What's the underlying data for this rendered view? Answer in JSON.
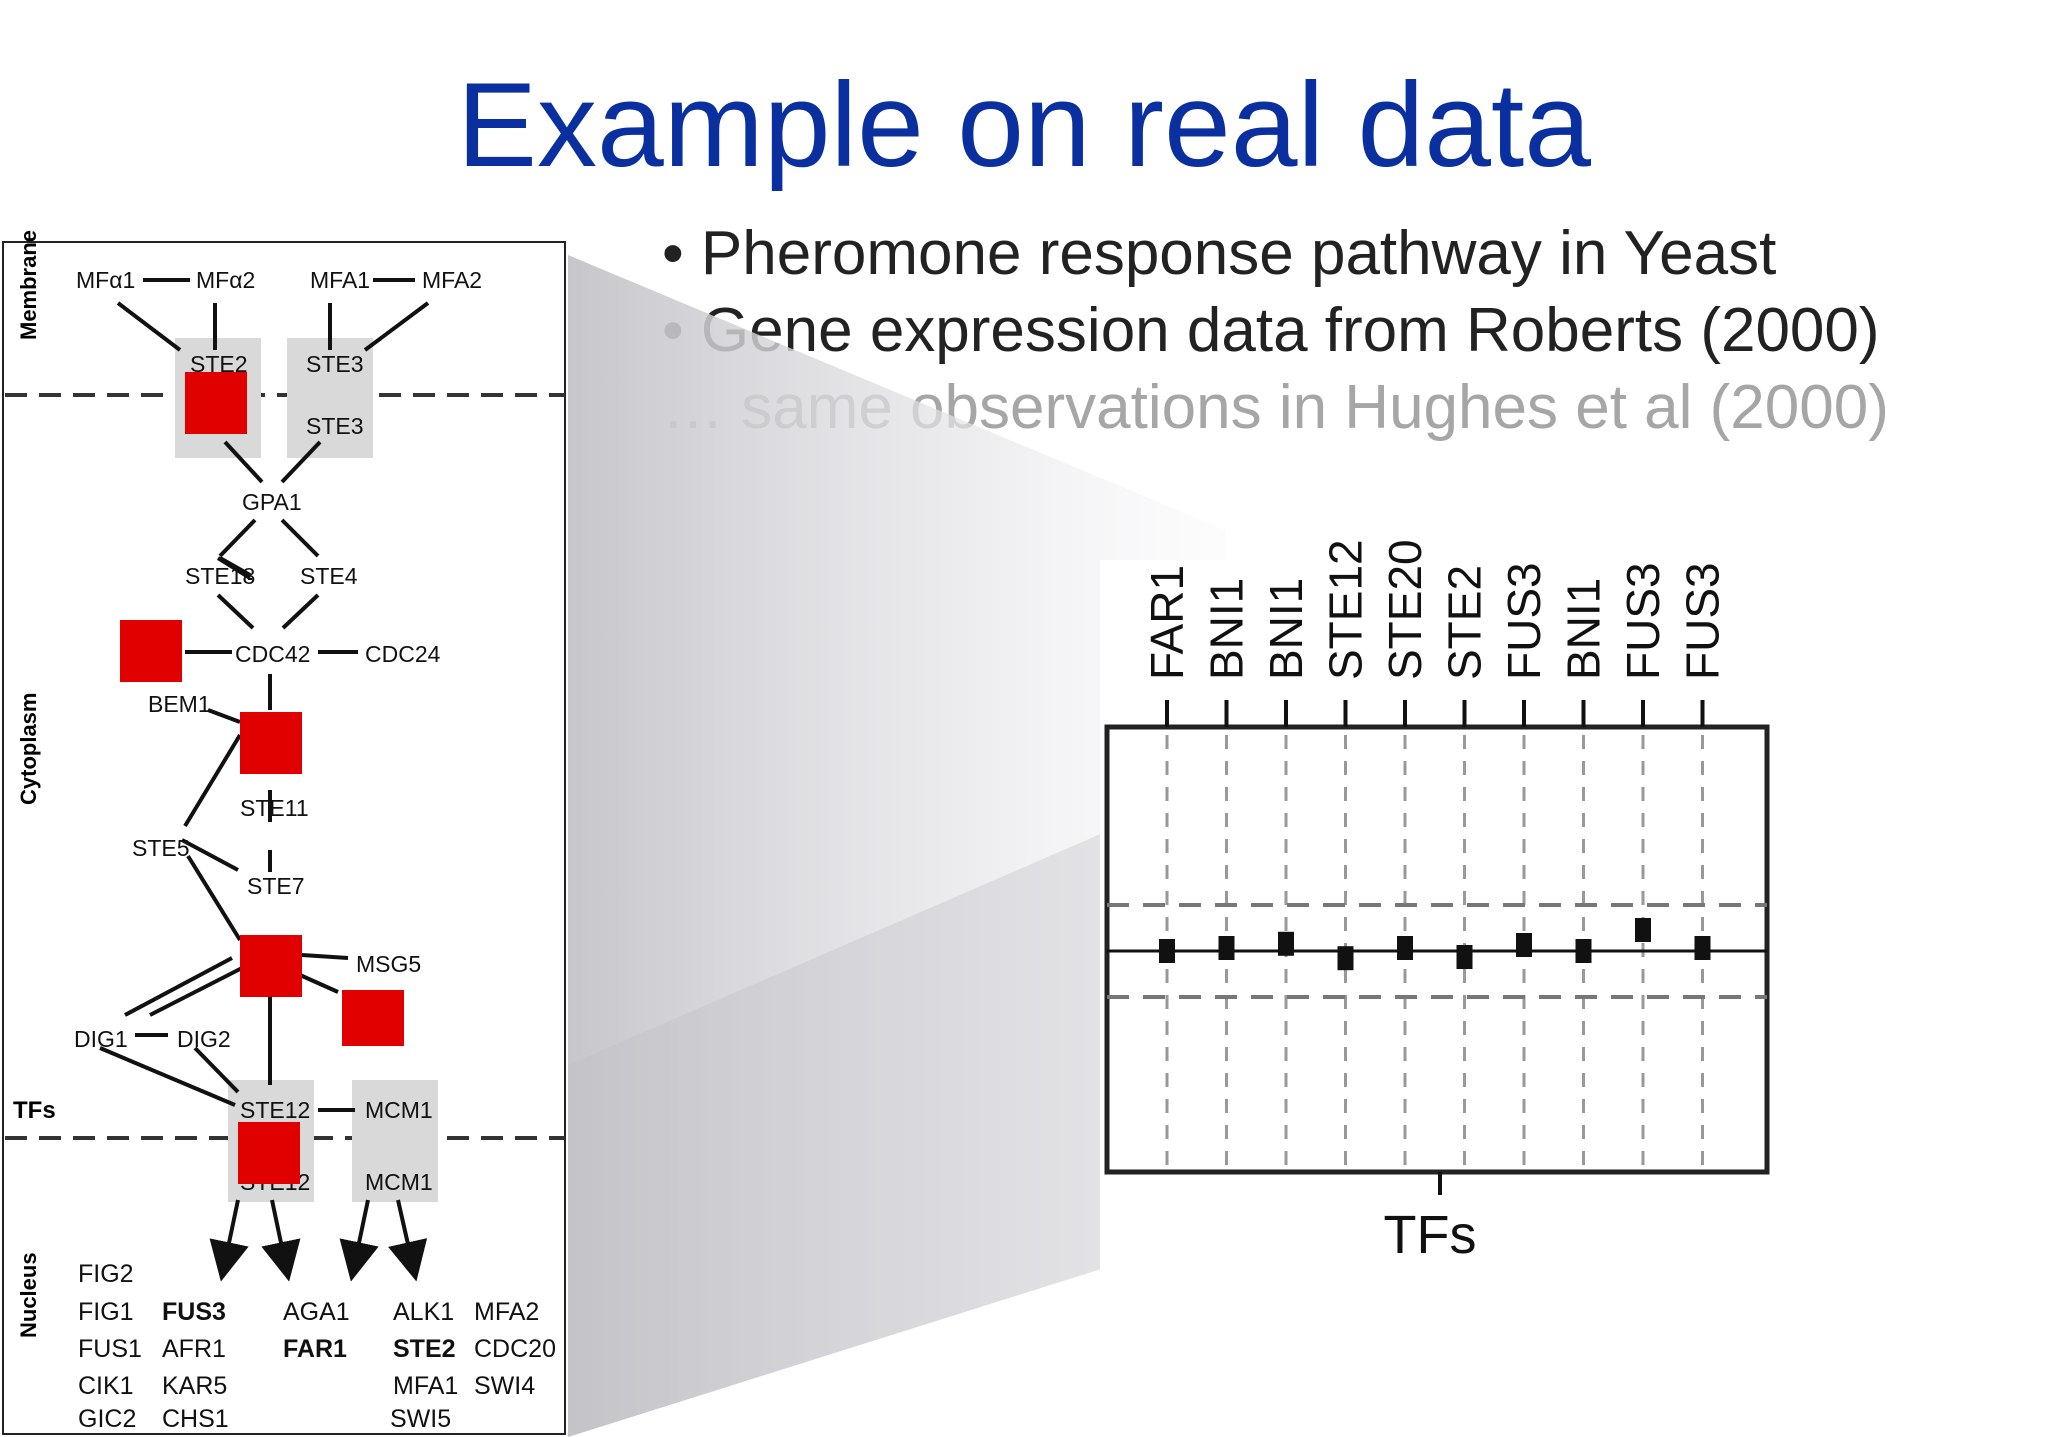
{
  "slide": {
    "title": "Example on real data",
    "bullets": [
      "• Pheromone response pathway in Yeast",
      "• Gene expression data from Roberts (2000)",
      "… same observations in Hughes et al (2000)"
    ]
  },
  "pathway": {
    "regions": [
      "Membrane",
      "Cytoplasm",
      "TFs",
      "Nucleus"
    ],
    "membrane_top": [
      "MFα1",
      "MFα2",
      "MFA1",
      "MFA2"
    ],
    "receptors": [
      "STE2",
      "STE3",
      "STE2",
      "STE3"
    ],
    "cytoplasm": {
      "gpa1": "GPA1",
      "ste18": "STE18",
      "ste4": "STE4",
      "cdc42": "CDC42",
      "cdc24": "CDC24",
      "bem1": "BEM1",
      "ste11": "STE11",
      "ste5": "STE5",
      "ste7": "STE7",
      "msg5": "MSG5",
      "dig1": "DIG1",
      "dig2": "DIG2"
    },
    "tfs": [
      "STE12",
      "MCM1",
      "STE12",
      "MCM1"
    ],
    "targets": [
      {
        "text": "FIG2",
        "bold": false
      },
      {
        "text": "FIG1",
        "bold": false
      },
      {
        "text": "FUS3",
        "bold": true
      },
      {
        "text": "AGA1",
        "bold": false
      },
      {
        "text": "ALK1",
        "bold": false
      },
      {
        "text": "MFA2",
        "bold": false
      },
      {
        "text": "FUS1",
        "bold": false
      },
      {
        "text": "AFR1",
        "bold": false
      },
      {
        "text": "FAR1",
        "bold": true
      },
      {
        "text": "STE2",
        "bold": true
      },
      {
        "text": "CDC20",
        "bold": false
      },
      {
        "text": "CIK1",
        "bold": false
      },
      {
        "text": "KAR5",
        "bold": false
      },
      {
        "text": "MFA1",
        "bold": false
      },
      {
        "text": "SWI4",
        "bold": false
      },
      {
        "text": "GIC2",
        "bold": false
      },
      {
        "text": "CHS1",
        "bold": false
      },
      {
        "text": "SWI5",
        "bold": false
      }
    ]
  },
  "zoom_plot": {
    "genes": [
      "FAR1",
      "BNI1",
      "BNI1",
      "STE12",
      "STE20",
      "STE2",
      "FUS3",
      "BNI1",
      "FUS3",
      "FUS3"
    ],
    "xlabel": "TFs",
    "values": [
      0,
      0.05,
      0.12,
      -0.12,
      0.05,
      -0.1,
      0.1,
      0,
      0.35,
      0.05
    ],
    "colors": {
      "marker": "#d40000",
      "title": "#0a2f9e"
    }
  }
}
